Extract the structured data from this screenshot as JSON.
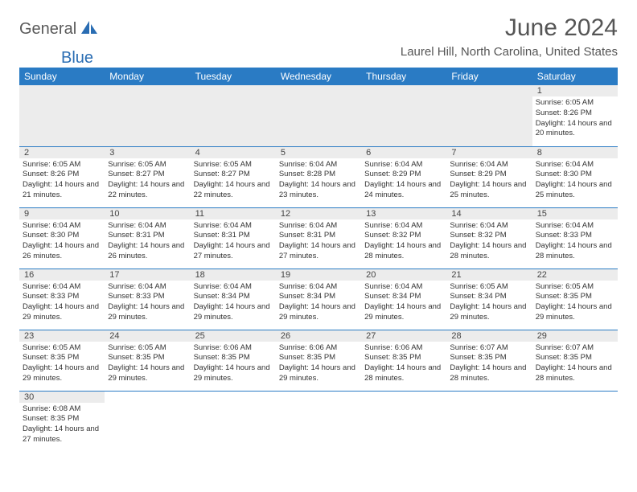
{
  "brand": {
    "part1": "General",
    "part2": "Blue"
  },
  "title": "June 2024",
  "location": "Laurel Hill, North Carolina, United States",
  "colors": {
    "header_bg": "#2a7bc4",
    "header_text": "#ffffff",
    "grid_line": "#2a7bc4",
    "daynum_bg": "#ececec",
    "body_text": "#333333",
    "brand_gray": "#5a5a5a",
    "brand_blue": "#2a6db3"
  },
  "day_headers": [
    "Sunday",
    "Monday",
    "Tuesday",
    "Wednesday",
    "Thursday",
    "Friday",
    "Saturday"
  ],
  "weeks": [
    [
      null,
      null,
      null,
      null,
      null,
      null,
      {
        "n": "1",
        "sunrise": "6:05 AM",
        "sunset": "8:26 PM",
        "daylight": "14 hours and 20 minutes."
      }
    ],
    [
      {
        "n": "2",
        "sunrise": "6:05 AM",
        "sunset": "8:26 PM",
        "daylight": "14 hours and 21 minutes."
      },
      {
        "n": "3",
        "sunrise": "6:05 AM",
        "sunset": "8:27 PM",
        "daylight": "14 hours and 22 minutes."
      },
      {
        "n": "4",
        "sunrise": "6:05 AM",
        "sunset": "8:27 PM",
        "daylight": "14 hours and 22 minutes."
      },
      {
        "n": "5",
        "sunrise": "6:04 AM",
        "sunset": "8:28 PM",
        "daylight": "14 hours and 23 minutes."
      },
      {
        "n": "6",
        "sunrise": "6:04 AM",
        "sunset": "8:29 PM",
        "daylight": "14 hours and 24 minutes."
      },
      {
        "n": "7",
        "sunrise": "6:04 AM",
        "sunset": "8:29 PM",
        "daylight": "14 hours and 25 minutes."
      },
      {
        "n": "8",
        "sunrise": "6:04 AM",
        "sunset": "8:30 PM",
        "daylight": "14 hours and 25 minutes."
      }
    ],
    [
      {
        "n": "9",
        "sunrise": "6:04 AM",
        "sunset": "8:30 PM",
        "daylight": "14 hours and 26 minutes."
      },
      {
        "n": "10",
        "sunrise": "6:04 AM",
        "sunset": "8:31 PM",
        "daylight": "14 hours and 26 minutes."
      },
      {
        "n": "11",
        "sunrise": "6:04 AM",
        "sunset": "8:31 PM",
        "daylight": "14 hours and 27 minutes."
      },
      {
        "n": "12",
        "sunrise": "6:04 AM",
        "sunset": "8:31 PM",
        "daylight": "14 hours and 27 minutes."
      },
      {
        "n": "13",
        "sunrise": "6:04 AM",
        "sunset": "8:32 PM",
        "daylight": "14 hours and 28 minutes."
      },
      {
        "n": "14",
        "sunrise": "6:04 AM",
        "sunset": "8:32 PM",
        "daylight": "14 hours and 28 minutes."
      },
      {
        "n": "15",
        "sunrise": "6:04 AM",
        "sunset": "8:33 PM",
        "daylight": "14 hours and 28 minutes."
      }
    ],
    [
      {
        "n": "16",
        "sunrise": "6:04 AM",
        "sunset": "8:33 PM",
        "daylight": "14 hours and 29 minutes."
      },
      {
        "n": "17",
        "sunrise": "6:04 AM",
        "sunset": "8:33 PM",
        "daylight": "14 hours and 29 minutes."
      },
      {
        "n": "18",
        "sunrise": "6:04 AM",
        "sunset": "8:34 PM",
        "daylight": "14 hours and 29 minutes."
      },
      {
        "n": "19",
        "sunrise": "6:04 AM",
        "sunset": "8:34 PM",
        "daylight": "14 hours and 29 minutes."
      },
      {
        "n": "20",
        "sunrise": "6:04 AM",
        "sunset": "8:34 PM",
        "daylight": "14 hours and 29 minutes."
      },
      {
        "n": "21",
        "sunrise": "6:05 AM",
        "sunset": "8:34 PM",
        "daylight": "14 hours and 29 minutes."
      },
      {
        "n": "22",
        "sunrise": "6:05 AM",
        "sunset": "8:35 PM",
        "daylight": "14 hours and 29 minutes."
      }
    ],
    [
      {
        "n": "23",
        "sunrise": "6:05 AM",
        "sunset": "8:35 PM",
        "daylight": "14 hours and 29 minutes."
      },
      {
        "n": "24",
        "sunrise": "6:05 AM",
        "sunset": "8:35 PM",
        "daylight": "14 hours and 29 minutes."
      },
      {
        "n": "25",
        "sunrise": "6:06 AM",
        "sunset": "8:35 PM",
        "daylight": "14 hours and 29 minutes."
      },
      {
        "n": "26",
        "sunrise": "6:06 AM",
        "sunset": "8:35 PM",
        "daylight": "14 hours and 29 minutes."
      },
      {
        "n": "27",
        "sunrise": "6:06 AM",
        "sunset": "8:35 PM",
        "daylight": "14 hours and 28 minutes."
      },
      {
        "n": "28",
        "sunrise": "6:07 AM",
        "sunset": "8:35 PM",
        "daylight": "14 hours and 28 minutes."
      },
      {
        "n": "29",
        "sunrise": "6:07 AM",
        "sunset": "8:35 PM",
        "daylight": "14 hours and 28 minutes."
      }
    ],
    [
      {
        "n": "30",
        "sunrise": "6:08 AM",
        "sunset": "8:35 PM",
        "daylight": "14 hours and 27 minutes."
      },
      null,
      null,
      null,
      null,
      null,
      null
    ]
  ],
  "labels": {
    "sunrise": "Sunrise:",
    "sunset": "Sunset:",
    "daylight": "Daylight:"
  }
}
